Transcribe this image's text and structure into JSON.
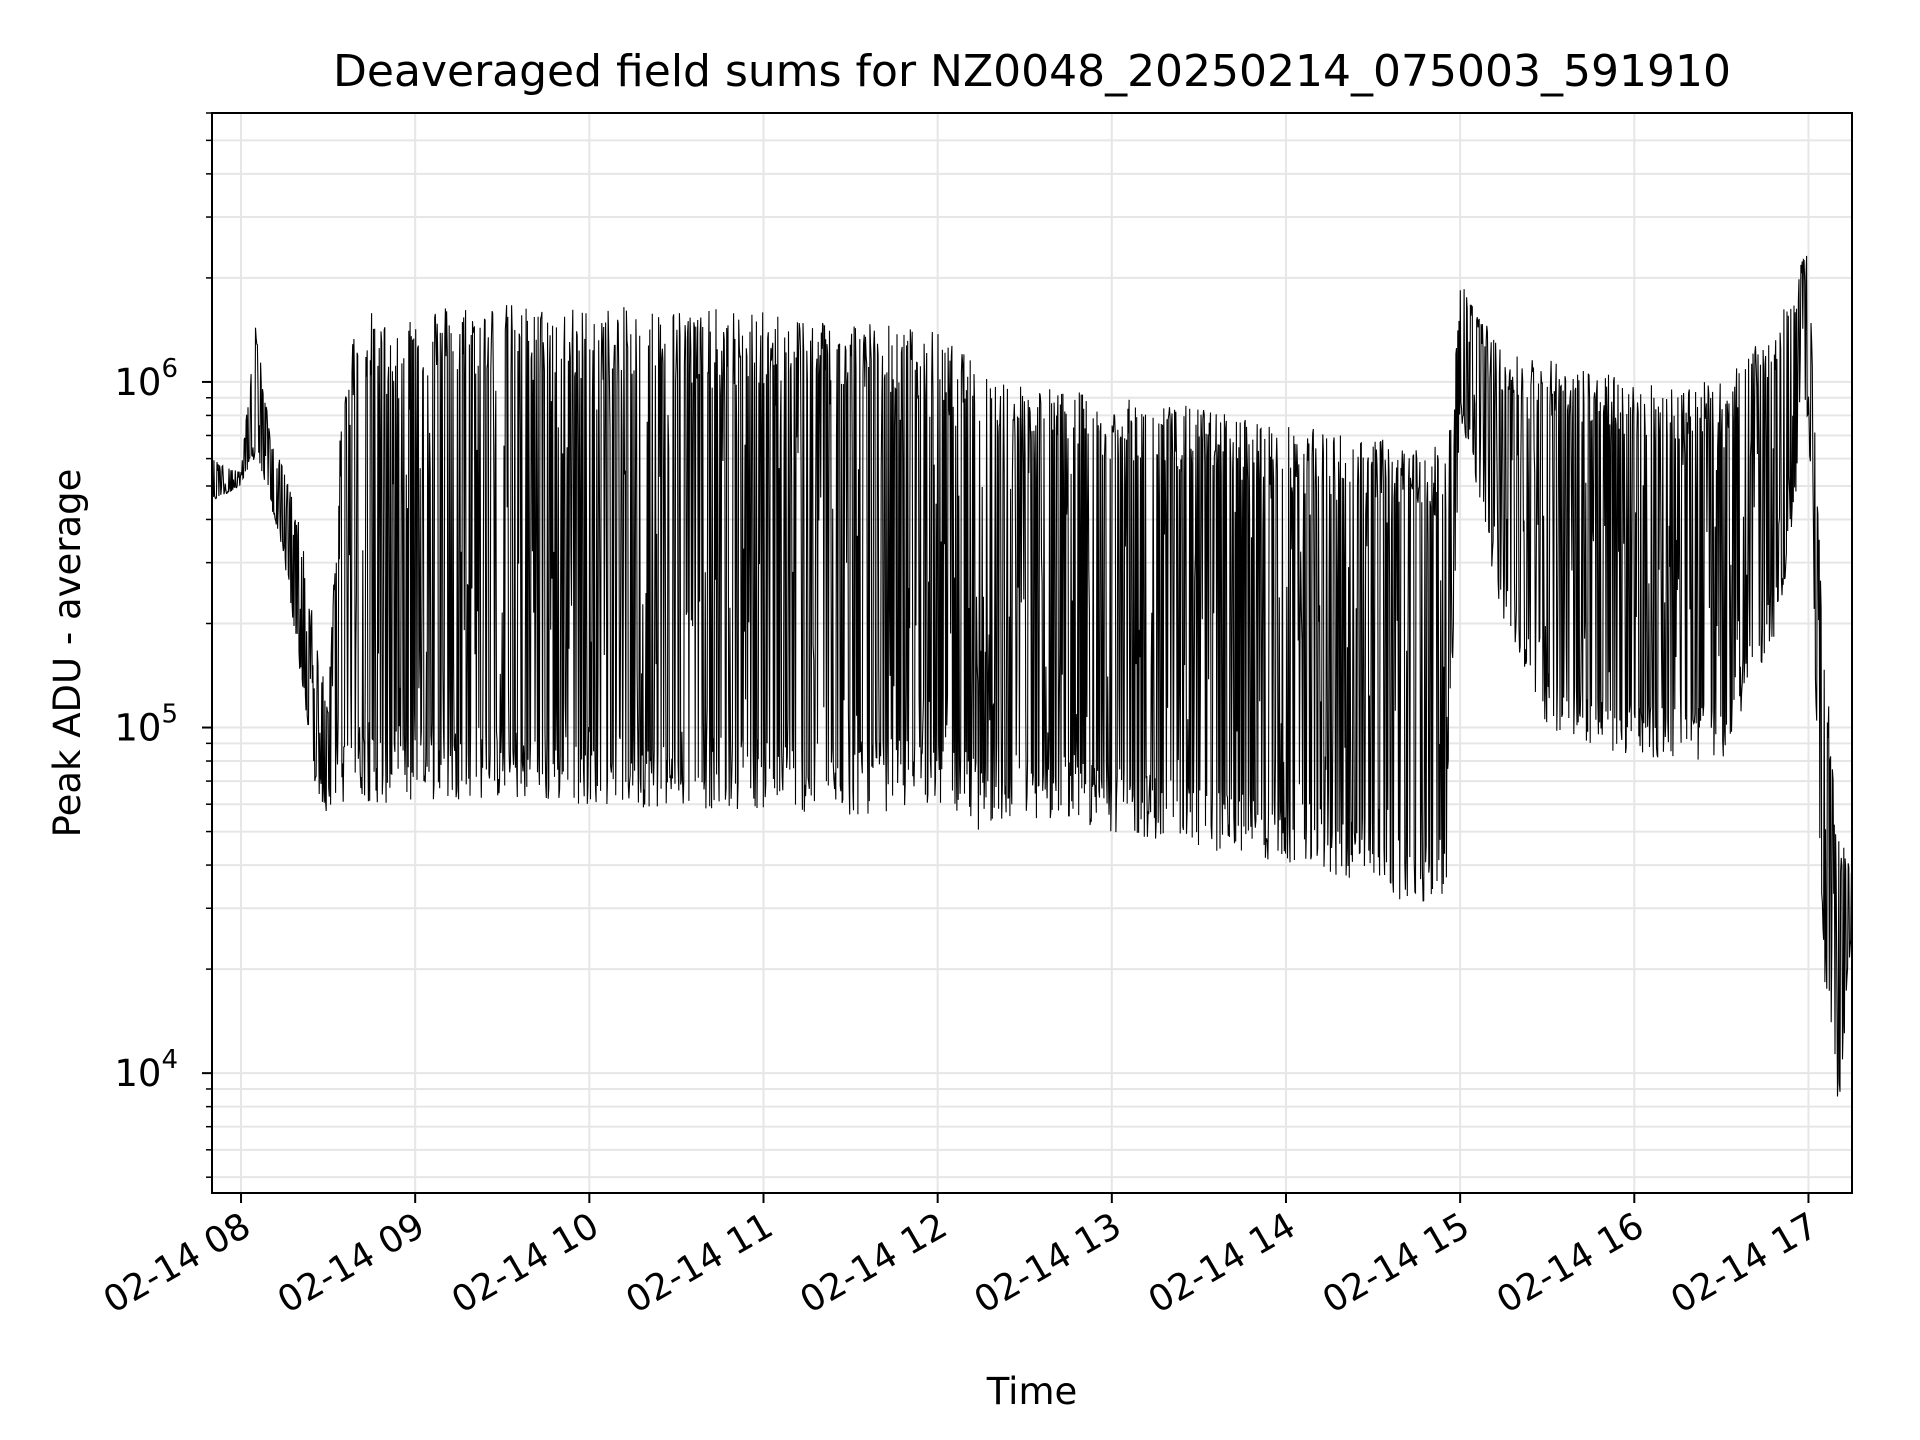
{
  "chart_data": {
    "type": "line",
    "title": "Deaveraged field sums for NZ0048_20250214_075003_591910",
    "xlabel": "Time",
    "ylabel": "Peak ADU - average",
    "yscale": "log",
    "xlim": [
      "2025-02-14 07:50",
      "2025-02-14 17:15"
    ],
    "ylim": [
      4500,
      6000000
    ],
    "x_ticks": [
      "02-14 08",
      "02-14 09",
      "02-14 10",
      "02-14 11",
      "02-14 12",
      "02-14 13",
      "02-14 14",
      "02-14 15",
      "02-14 16",
      "02-14 17"
    ],
    "y_ticks": [
      {
        "value": 10000,
        "base": "10",
        "exp": "4"
      },
      {
        "value": 100000,
        "base": "10",
        "exp": "5"
      },
      {
        "value": 1000000,
        "base": "10",
        "exp": "6"
      }
    ],
    "grid": true,
    "line_color": "#000000",
    "series": [
      {
        "x": [
          "2025-02-14 07:50",
          "2025-02-14 08:00",
          "2025-02-14 08:05",
          "2025-02-14 08:10",
          "2025-02-14 08:15",
          "2025-02-14 08:20",
          "2025-02-14 08:25",
          "2025-02-14 08:30",
          "2025-02-14 08:35",
          "2025-02-14 08:40",
          "2025-02-14 08:45",
          "2025-02-14 08:50",
          "2025-02-14 09:00",
          "2025-02-14 09:15",
          "2025-02-14 09:30",
          "2025-02-14 09:45",
          "2025-02-14 10:00",
          "2025-02-14 10:30",
          "2025-02-14 11:00",
          "2025-02-14 11:30",
          "2025-02-14 12:00",
          "2025-02-14 12:15",
          "2025-02-14 12:30",
          "2025-02-14 13:00",
          "2025-02-14 13:30",
          "2025-02-14 14:00",
          "2025-02-14 14:30",
          "2025-02-14 14:45",
          "2025-02-14 14:55",
          "2025-02-14 15:00",
          "2025-02-14 15:15",
          "2025-02-14 15:30",
          "2025-02-14 16:00",
          "2025-02-14 16:30",
          "2025-02-14 16:50",
          "2025-02-14 17:00",
          "2025-02-14 17:05",
          "2025-02-14 17:10",
          "2025-02-14 17:15"
        ],
        "top": [
          600000,
          550000,
          1500000,
          700000,
          550000,
          400000,
          200000,
          120000,
          1000000,
          1600000,
          1600000,
          1500000,
          1700000,
          1700000,
          1700000,
          1650000,
          1650000,
          1650000,
          1600000,
          1550000,
          1400000,
          1100000,
          1000000,
          900000,
          850000,
          750000,
          700000,
          650000,
          650000,
          2000000,
          1200000,
          1200000,
          1000000,
          1000000,
          1500000,
          2500000,
          200000,
          50000,
          40000
        ],
        "bottom": [
          450000,
          500000,
          600000,
          450000,
          300000,
          150000,
          70000,
          55000,
          60000,
          65000,
          60000,
          60000,
          60000,
          62000,
          62000,
          60000,
          60000,
          58000,
          58000,
          55000,
          60000,
          50000,
          55000,
          50000,
          45000,
          40000,
          35000,
          30000,
          30000,
          800000,
          200000,
          100000,
          80000,
          80000,
          200000,
          800000,
          20000,
          7000,
          25000
        ]
      }
    ]
  }
}
